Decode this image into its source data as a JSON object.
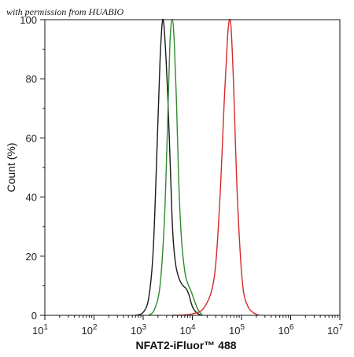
{
  "watermark": "with permission from HUABIO",
  "chart_data": {
    "type": "line",
    "xlabel": "NFAT2-iFluor™ 488",
    "ylabel": "Count (%)",
    "x_scale": "log10",
    "xlim": [
      10,
      10000000
    ],
    "ylim": [
      0,
      100
    ],
    "x_ticks": [
      {
        "value": 10,
        "base": "10",
        "exp": "1"
      },
      {
        "value": 100,
        "base": "10",
        "exp": "2"
      },
      {
        "value": 1000,
        "base": "10",
        "exp": "3"
      },
      {
        "value": 10000,
        "base": "10",
        "exp": "4"
      },
      {
        "value": 100000,
        "base": "10",
        "exp": "5"
      },
      {
        "value": 1000000,
        "base": "10",
        "exp": "6"
      },
      {
        "value": 10000000,
        "base": "10",
        "exp": "7"
      }
    ],
    "y_ticks": [
      "0",
      "20",
      "40",
      "60",
      "80",
      "100"
    ],
    "legend": "none",
    "grid": false,
    "series": [
      {
        "color": "#1a1a1a",
        "points": [
          [
            700,
            0
          ],
          [
            1000,
            1
          ],
          [
            1300,
            6
          ],
          [
            1600,
            22
          ],
          [
            1900,
            55
          ],
          [
            2200,
            86
          ],
          [
            2500,
            100
          ],
          [
            2800,
            92
          ],
          [
            3200,
            72
          ],
          [
            3600,
            48
          ],
          [
            4000,
            28
          ],
          [
            4600,
            17
          ],
          [
            5500,
            12
          ],
          [
            6500,
            10
          ],
          [
            7500,
            9
          ],
          [
            8500,
            7
          ],
          [
            10000,
            3
          ],
          [
            12000,
            1
          ],
          [
            15000,
            0
          ]
        ]
      },
      {
        "color": "#2e8b2e",
        "points": [
          [
            1300,
            0
          ],
          [
            1700,
            2
          ],
          [
            2200,
            10
          ],
          [
            2700,
            32
          ],
          [
            3100,
            62
          ],
          [
            3500,
            92
          ],
          [
            3900,
            100
          ],
          [
            4300,
            92
          ],
          [
            4800,
            70
          ],
          [
            5300,
            45
          ],
          [
            6000,
            26
          ],
          [
            7000,
            15
          ],
          [
            8000,
            11
          ],
          [
            9500,
            8
          ],
          [
            11000,
            5
          ],
          [
            13000,
            2
          ],
          [
            16000,
            0
          ]
        ]
      },
      {
        "color": "#d42a2a",
        "points": [
          [
            4000,
            0
          ],
          [
            10000,
            0.5
          ],
          [
            18000,
            3
          ],
          [
            28000,
            13
          ],
          [
            36000,
            38
          ],
          [
            45000,
            74
          ],
          [
            52000,
            94
          ],
          [
            57000,
            100
          ],
          [
            62000,
            96
          ],
          [
            70000,
            75
          ],
          [
            80000,
            45
          ],
          [
            95000,
            20
          ],
          [
            110000,
            8
          ],
          [
            135000,
            3
          ],
          [
            170000,
            1
          ],
          [
            230000,
            0
          ]
        ]
      }
    ]
  }
}
